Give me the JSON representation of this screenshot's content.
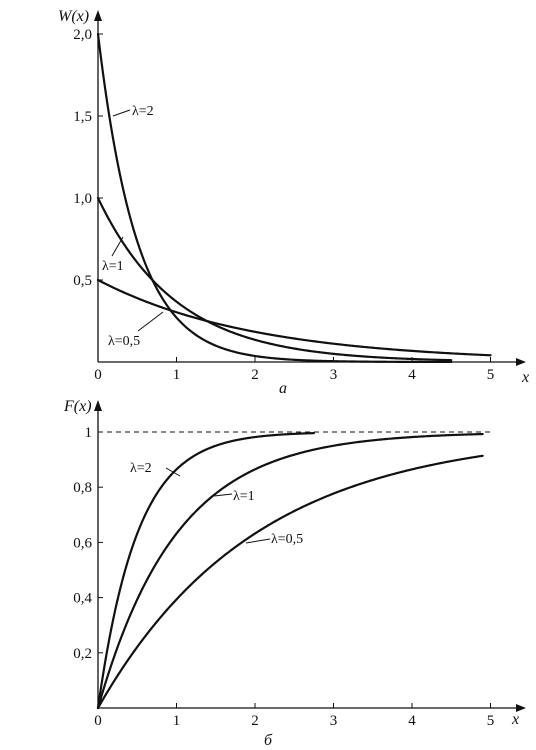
{
  "chart_data": [
    {
      "type": "line",
      "panel_label": "а",
      "ylabel": "W(x)",
      "xlabel": "x",
      "xlim": [
        0,
        5.4
      ],
      "ylim": [
        0,
        2.05
      ],
      "x_ticks": [
        0,
        1,
        2,
        3,
        4,
        5
      ],
      "x_tick_labels": [
        "0",
        "1",
        "2",
        "3",
        "4",
        "5"
      ],
      "y_ticks": [
        0.5,
        1.0,
        1.5,
        2.0
      ],
      "y_tick_labels": [
        "0,5",
        "1,0",
        "1,5",
        "2,0"
      ],
      "reference_line": null,
      "series": [
        {
          "label": "λ=2",
          "lambda": 2,
          "x_max": 4.5,
          "x": [
            0,
            0.5,
            1,
            1.5,
            2,
            3,
            4,
            4.5
          ],
          "y": [
            2.0,
            0.736,
            0.271,
            0.1,
            0.037,
            0.005,
            0.0007,
            0.0002
          ]
        },
        {
          "label": "λ=1",
          "lambda": 1,
          "x_max": 4.5,
          "x": [
            0,
            0.5,
            1,
            1.5,
            2,
            3,
            4,
            4.5
          ],
          "y": [
            1.0,
            0.607,
            0.368,
            0.223,
            0.135,
            0.05,
            0.018,
            0.011
          ]
        },
        {
          "label": "λ=0,5",
          "lambda": 0.5,
          "x_max": 5,
          "x": [
            0,
            1,
            2,
            3,
            4,
            5
          ],
          "y": [
            0.5,
            0.303,
            0.184,
            0.112,
            0.068,
            0.041
          ]
        }
      ]
    },
    {
      "type": "line",
      "panel_label": "б",
      "ylabel": "F(x)",
      "xlabel": "x",
      "xlim": [
        0,
        5.4
      ],
      "ylim": [
        0,
        1.06
      ],
      "x_ticks": [
        0,
        1,
        2,
        3,
        4,
        5
      ],
      "x_tick_labels": [
        "0",
        "1",
        "2",
        "3",
        "4",
        "5"
      ],
      "y_ticks": [
        0.2,
        0.4,
        0.6,
        0.8,
        1.0
      ],
      "y_tick_labels": [
        "0,2",
        "0,4",
        "0,6",
        "0,8",
        "1"
      ],
      "reference_line": {
        "y": 1,
        "style": "dashed"
      },
      "series": [
        {
          "label": "λ=2",
          "lambda": 2,
          "x_max": 2.75,
          "x": [
            0,
            0.5,
            1,
            1.5,
            2,
            2.75
          ],
          "y": [
            0,
            0.632,
            0.865,
            0.95,
            0.982,
            0.996
          ]
        },
        {
          "label": "λ=1",
          "lambda": 1,
          "x_max": 4.9,
          "x": [
            0,
            1,
            2,
            3,
            4,
            4.9
          ],
          "y": [
            0,
            0.632,
            0.865,
            0.95,
            0.982,
            0.993
          ]
        },
        {
          "label": "λ=0,5",
          "lambda": 0.5,
          "x_max": 4.9,
          "x": [
            0,
            1,
            2,
            3,
            4,
            4.9
          ],
          "y": [
            0,
            0.393,
            0.632,
            0.777,
            0.865,
            0.914
          ]
        }
      ]
    }
  ]
}
